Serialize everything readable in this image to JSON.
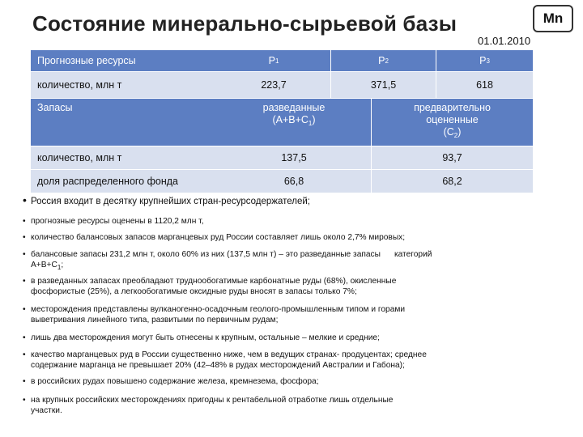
{
  "title": "Состояние минерально-сырьевой базы",
  "badge": "Mn",
  "date": "01.01.2010",
  "table": {
    "row1": {
      "label": "Прогнозные ресурсы",
      "p1": "P",
      "p1_sub": "1",
      "p2": "P",
      "p2_sub": "2",
      "p3": "P",
      "p3_sub": "3"
    },
    "row2": {
      "label": "количество, млн т",
      "v1": "223,7",
      "v2": "371,5",
      "v3": "618"
    },
    "row3": {
      "label": "Запасы",
      "h1_line1": "разведанные",
      "h1_line2": "(A+B+C",
      "h1_sub": "1",
      "h1_end": ")",
      "h2_line1": "предварительно",
      "h2_line2": "оцененные",
      "h2_line3": "(C",
      "h2_sub": "2",
      "h2_end": ")"
    },
    "row4": {
      "label": "количество, млн т",
      "v1": "137,5",
      "v2": "93,7"
    },
    "row5": {
      "label": "доля распределенного фонда",
      "v1": "66,8",
      "v2": "68,2"
    }
  },
  "bullets": [
    {
      "marker": "•",
      "text": "Россия входит в десятку крупнейших стран-ресурсодержателей;"
    },
    {
      "marker": "•",
      "text": "прогнозные ресурсы оценены в 1120,2 млн т,"
    },
    {
      "marker": "•",
      "text": "количество балансовых запасов марганцевых руд России составляет лишь около 2,7% мировых;"
    },
    {
      "marker": "•",
      "line1": "балансовые запасы 231,2 млн т, около 60% из них (137,5 млн т) – это разведанные запасы      категорий",
      "line2": "A+B+C",
      "line2_sub": "1",
      "line2_end": ";"
    },
    {
      "marker": "•",
      "line1": "в разведанных запасах преобладают труднообогатимые карбонатные руды (68%), окисленные",
      "line2": "фосфористые (25%), а легкообогатимые оксидные руды вносят в запасы только 7%;"
    },
    {
      "marker": "•",
      "line1": "месторождения представлены вулканогенно-осадочным геолого-промышленным типом и горами",
      "line2": "выветривания линейного типа, развитыми по первичным рудам;"
    },
    {
      "marker": "•",
      "text": "лишь два месторождения могут быть отнесены к крупным, остальные – мелкие и средние;"
    },
    {
      "marker": "•",
      "line1": "качество марганцевых руд в России существенно ниже, чем в ведущих странах- продуцентах; среднее",
      "line2": "содержание марганца не превышает 20% (42–48% в рудах месторождений Австралии и Габона);"
    },
    {
      "marker": "•",
      "text": "в российских рудах повышено содержание железа, кремнезема, фосфора;"
    },
    {
      "marker": "•",
      "line1": "на крупных российских месторождениях пригодны к рентабельной отработке лишь отдельные",
      "line2": "участки."
    }
  ]
}
